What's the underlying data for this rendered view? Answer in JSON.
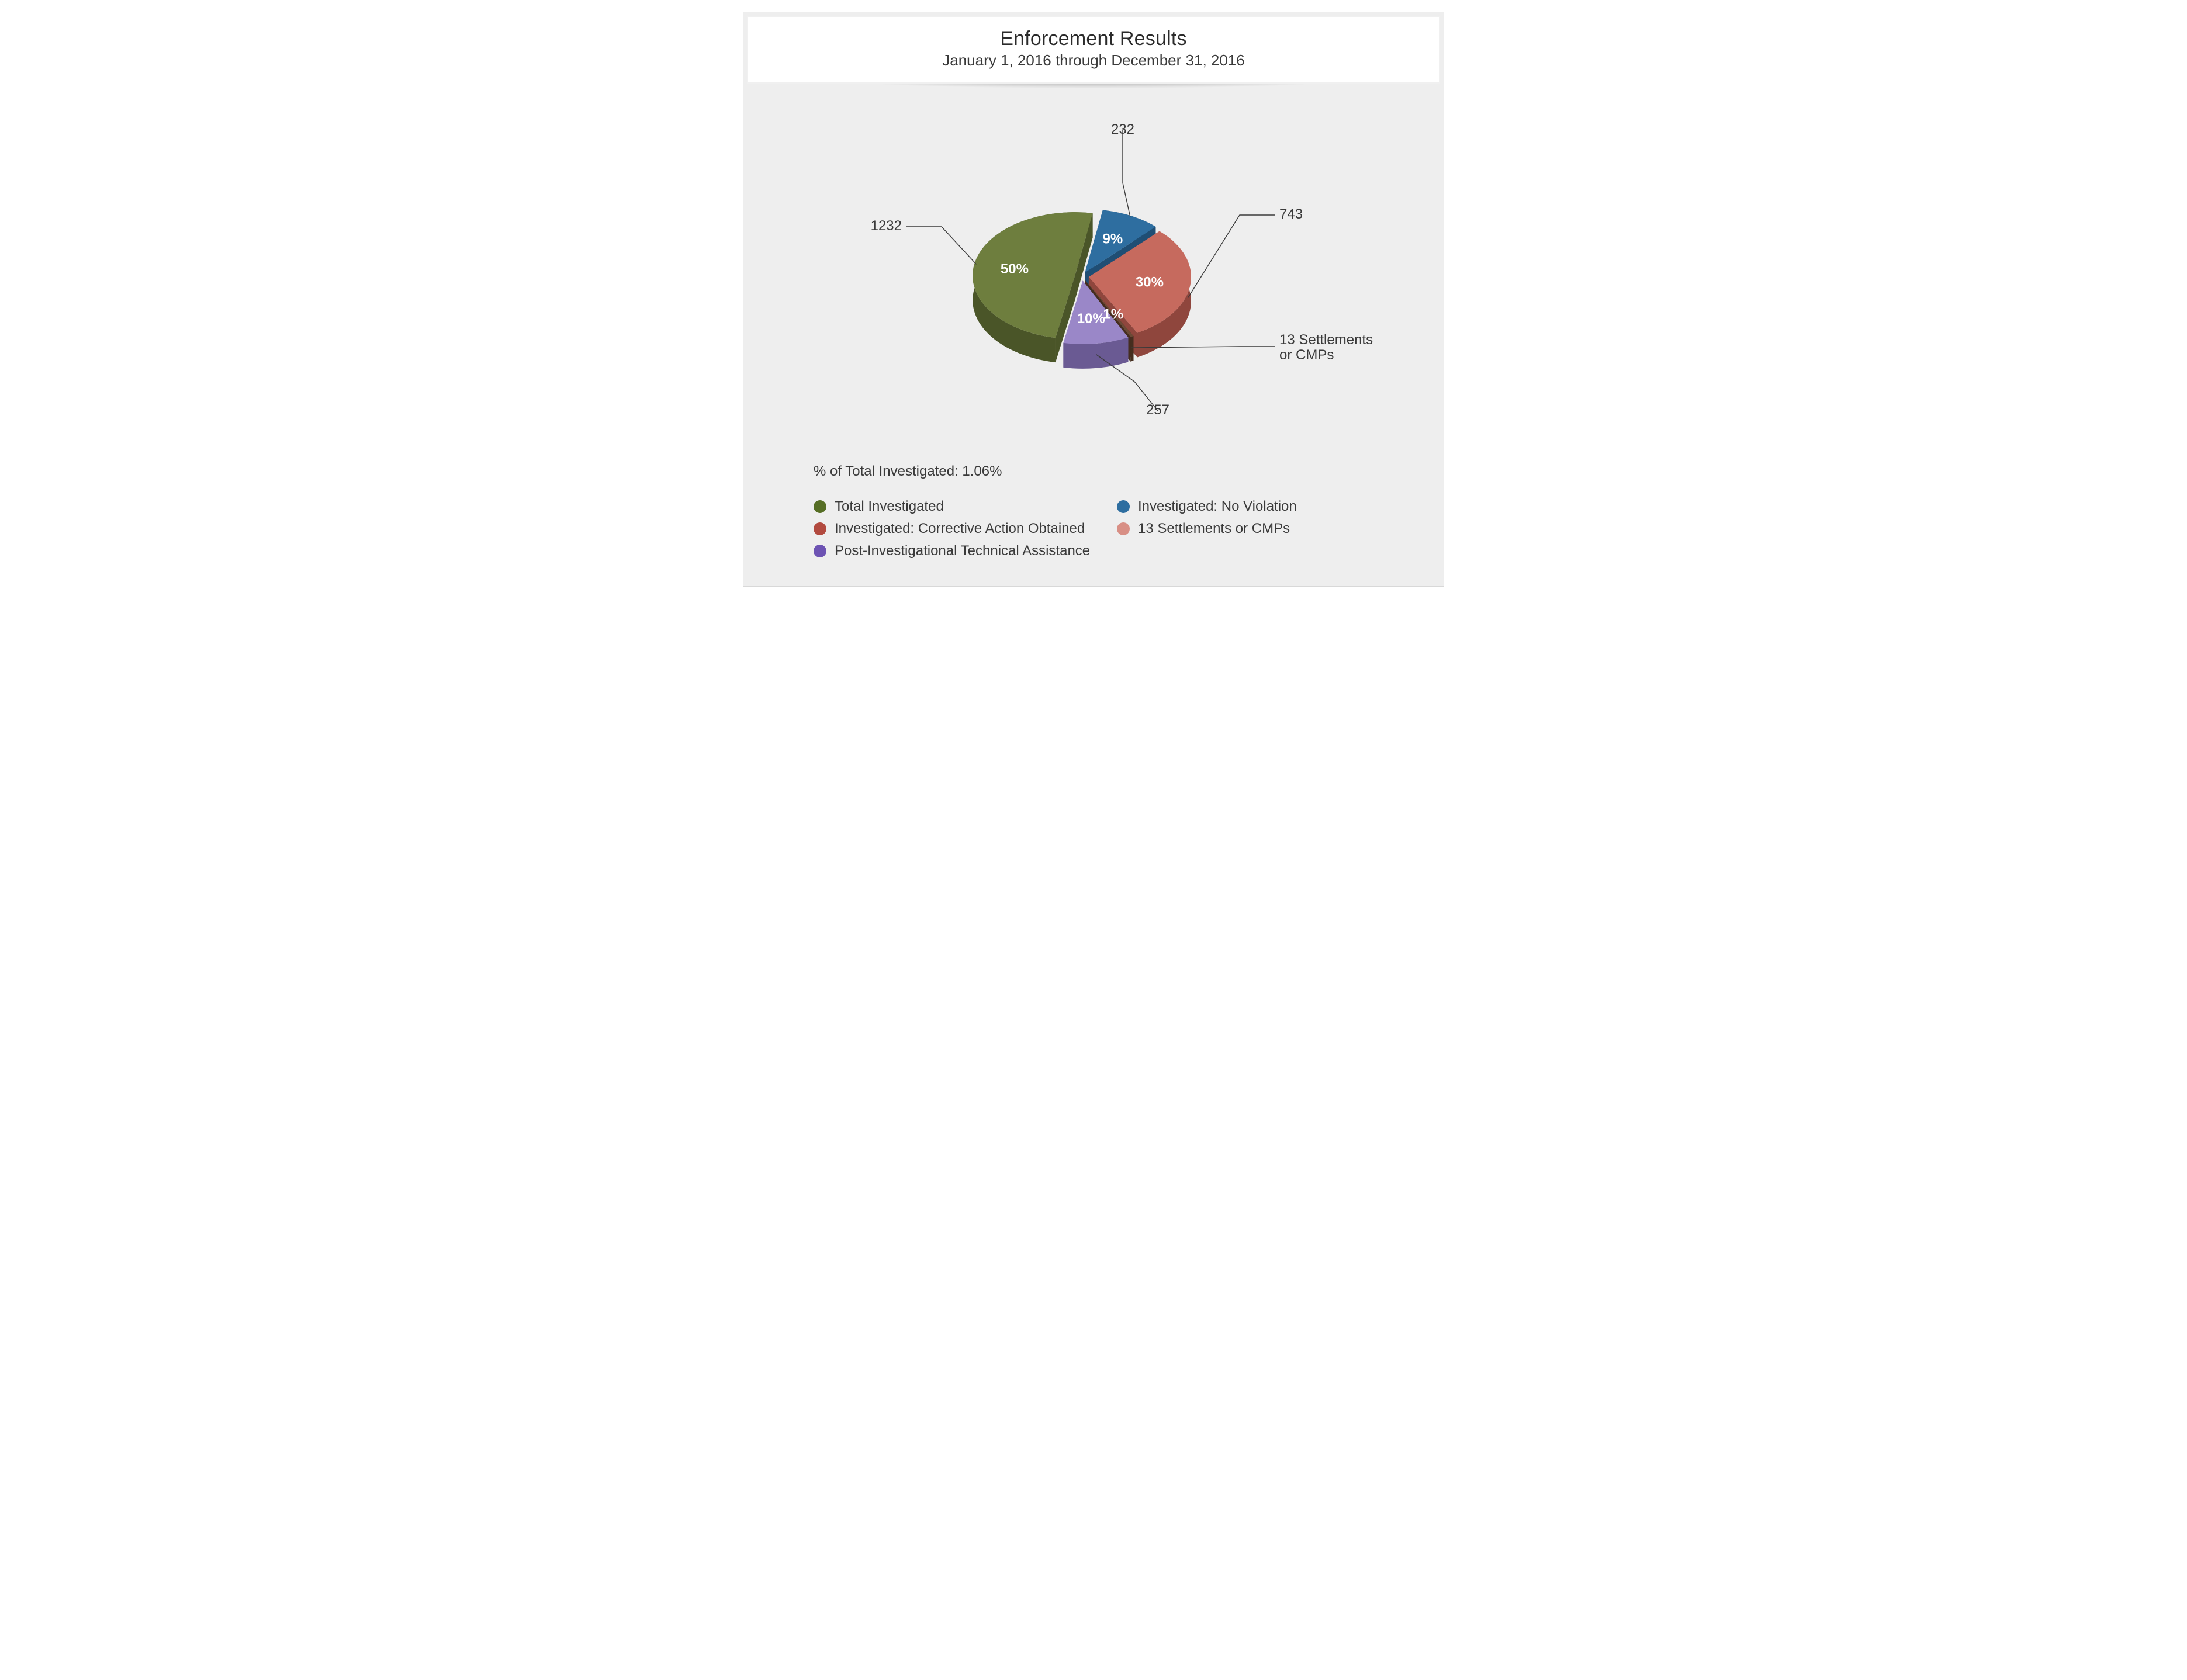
{
  "title": "Enforcement Results",
  "subtitle": "January 1, 2016 through December 31, 2016",
  "footer_note": "% of Total Investigated: 1.06%",
  "chart": {
    "type": "pie-3d-exploded",
    "background": "#eeeeee",
    "radius": 175,
    "depth": 42,
    "explode": 12,
    "start_angle_deg": -80,
    "direction": "clockwise",
    "label_font_size": 24,
    "label_color": "#3a3a3a",
    "pct_font_size": 24,
    "pct_color": "#ffffff",
    "pct_font_weight": "bold",
    "slices": [
      {
        "key": "no_violation",
        "label": "Investigated: No Violation",
        "value": 232,
        "pct": "9%",
        "top_color": "#2e6ea0",
        "side_color": "#1f4e74",
        "callout": "232"
      },
      {
        "key": "corrective",
        "label": "Investigated: Corrective Action Obtained",
        "value": 743,
        "pct": "30%",
        "top_color": "#c66a5e",
        "side_color": "#8f463d",
        "callout": "743"
      },
      {
        "key": "settlements",
        "label": "13 Settlements or CMPs",
        "value": 13,
        "pct": "1%",
        "top_color": "#6b4a36",
        "side_color": "#452d1f",
        "callout": "13 Settlements\nor CMPs"
      },
      {
        "key": "post_ta",
        "label": "Post-Investigational Technical Assistance",
        "value": 257,
        "pct": "10%",
        "top_color": "#9a87c8",
        "side_color": "#6a5a93",
        "callout": "257"
      },
      {
        "key": "total",
        "label": "Total Investigated",
        "value": 1232,
        "pct": "50%",
        "top_color": "#6e7e3e",
        "side_color": "#4a5528",
        "callout": "1232"
      }
    ],
    "legend_order": [
      "total",
      "no_violation",
      "corrective",
      "settlements",
      "post_ta"
    ],
    "legend_columns": 2,
    "legend_swatch_colors": {
      "total": "#566e25",
      "no_violation": "#2e6ea0",
      "corrective": "#b24a3f",
      "settlements": "#d88f85",
      "post_ta": "#6d53b3"
    }
  }
}
